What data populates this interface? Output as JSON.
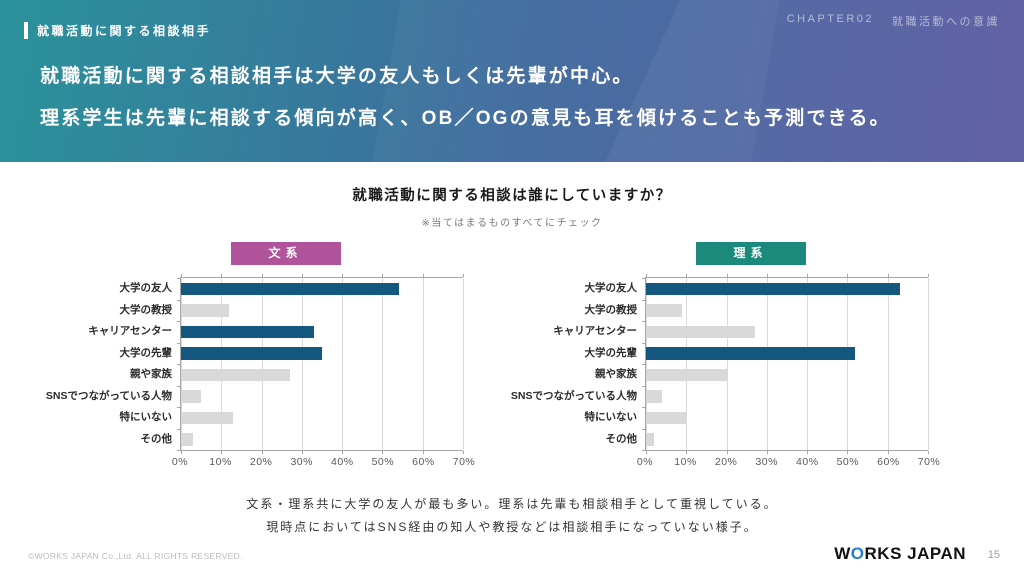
{
  "header": {
    "tag": "就職活動に関する相談相手",
    "chapter_label": "CHAPTER02",
    "chapter_title": "就職活動への意識",
    "headline_line1": "就職活動に関する相談相手は大学の友人もしくは先輩が中心。",
    "headline_line2": "理系学生は先輩に相談する傾向が高く、OB／OGの意見も耳を傾けることも予測できる。"
  },
  "question": {
    "title": "就職活動に関する相談は誰にしていますか？",
    "subtitle": "※当てはまるものすべてにチェック"
  },
  "chart_data": [
    {
      "type": "bar",
      "orientation": "horizontal",
      "title": "文系",
      "badge_color": "#b0539b",
      "categories": [
        "大学の友人",
        "大学の教授",
        "キャリアセンター",
        "大学の先輩",
        "親や家族",
        "SNSでつながっている人物",
        "特にいない",
        "その他"
      ],
      "values": [
        54,
        12,
        33,
        35,
        27,
        5,
        13,
        3
      ],
      "highlighted": [
        true,
        false,
        true,
        true,
        false,
        false,
        false,
        false
      ],
      "xlim": [
        0,
        70
      ],
      "x_ticks": [
        "0%",
        "10%",
        "20%",
        "30%",
        "40%",
        "50%",
        "60%",
        "70%"
      ],
      "grid": true,
      "unit": "%"
    },
    {
      "type": "bar",
      "orientation": "horizontal",
      "title": "理系",
      "badge_color": "#1b8a7d",
      "categories": [
        "大学の友人",
        "大学の教授",
        "キャリアセンター",
        "大学の先輩",
        "親や家族",
        "SNSでつながっている人物",
        "特にいない",
        "その他"
      ],
      "values": [
        63,
        9,
        27,
        52,
        20,
        4,
        10,
        2
      ],
      "highlighted": [
        true,
        false,
        false,
        true,
        false,
        false,
        false,
        false
      ],
      "xlim": [
        0,
        70
      ],
      "x_ticks": [
        "0%",
        "10%",
        "20%",
        "30%",
        "40%",
        "50%",
        "60%",
        "70%"
      ],
      "grid": true,
      "unit": "%"
    }
  ],
  "colors": {
    "bar_highlight": "#15587f",
    "bar_default": "#d9d9d9",
    "badge_bunkei": "#b0539b",
    "badge_rikei": "#1b8a7d",
    "header_gradient_left": "#2b929b",
    "header_gradient_mid": "#3f699e",
    "header_gradient_right": "#5a59a0",
    "logo_o_blue": "#1f7fd0"
  },
  "note": {
    "line1": "文系・理系共に大学の友人が最も多い。理系は先輩も相談相手として重視している。",
    "line2": "現時点においてはSNS経由の知人や教授などは相談相手になっていない様子。"
  },
  "footer": {
    "copyright": "©WORKS JAPAN Co.,Ltd. ALL RIGHTS RESERVED.",
    "logo_pre": "W",
    "logo_o": "O",
    "logo_post": "RKS JAPAN",
    "page": "15"
  }
}
